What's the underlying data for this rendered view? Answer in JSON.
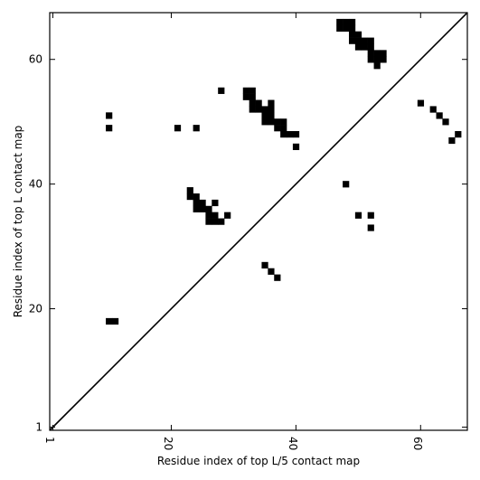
{
  "chart_data": {
    "type": "heatmap",
    "title": "",
    "xlabel": "Residue index of top L/5 contact map",
    "ylabel": "Residue index of top L contact map",
    "xlim": [
      0.5,
      67.5
    ],
    "ylim": [
      0.5,
      67.5
    ],
    "xticks": [
      1,
      20,
      40,
      60
    ],
    "yticks": [
      1,
      20,
      40,
      60
    ],
    "diagonal": true,
    "grid": false,
    "cell_color": "#000000",
    "upper_contacts": [
      [
        47,
        66
      ],
      [
        48,
        66
      ],
      [
        49,
        66
      ],
      [
        47,
        65
      ],
      [
        48,
        65
      ],
      [
        49,
        65
      ],
      [
        49,
        64
      ],
      [
        50,
        64
      ],
      [
        49,
        63
      ],
      [
        50,
        63
      ],
      [
        51,
        63
      ],
      [
        52,
        63
      ],
      [
        50,
        62
      ],
      [
        51,
        62
      ],
      [
        52,
        62
      ],
      [
        52,
        61
      ],
      [
        53,
        61
      ],
      [
        54,
        61
      ],
      [
        52,
        60
      ],
      [
        53,
        60
      ],
      [
        54,
        60
      ],
      [
        53,
        59
      ],
      [
        28,
        55
      ],
      [
        32,
        55
      ],
      [
        33,
        55
      ],
      [
        32,
        54
      ],
      [
        33,
        54
      ],
      [
        33,
        53
      ],
      [
        34,
        53
      ],
      [
        36,
        53
      ],
      [
        33,
        52
      ],
      [
        34,
        52
      ],
      [
        35,
        52
      ],
      [
        36,
        52
      ],
      [
        35,
        51
      ],
      [
        36,
        51
      ],
      [
        10,
        51
      ],
      [
        35,
        50
      ],
      [
        36,
        50
      ],
      [
        37,
        50
      ],
      [
        38,
        50
      ],
      [
        37,
        49
      ],
      [
        38,
        49
      ],
      [
        10,
        49
      ],
      [
        21,
        49
      ],
      [
        24,
        49
      ],
      [
        38,
        48
      ],
      [
        39,
        48
      ],
      [
        40,
        48
      ],
      [
        40,
        46
      ],
      [
        23,
        39
      ],
      [
        23,
        38
      ],
      [
        24,
        38
      ],
      [
        24,
        37
      ],
      [
        25,
        37
      ],
      [
        27,
        37
      ],
      [
        24,
        36
      ],
      [
        25,
        36
      ],
      [
        26,
        36
      ],
      [
        26,
        35
      ],
      [
        27,
        35
      ],
      [
        29,
        35
      ],
      [
        26,
        34
      ],
      [
        27,
        34
      ],
      [
        28,
        34
      ],
      [
        10,
        18
      ],
      [
        11,
        18
      ]
    ],
    "lower_contacts": [
      [
        60,
        53
      ],
      [
        62,
        52
      ],
      [
        63,
        51
      ],
      [
        64,
        50
      ],
      [
        66,
        48
      ],
      [
        65,
        47
      ],
      [
        48,
        40
      ],
      [
        50,
        35
      ],
      [
        52,
        35
      ],
      [
        52,
        33
      ],
      [
        35,
        27
      ],
      [
        36,
        26
      ],
      [
        37,
        25
      ]
    ]
  }
}
